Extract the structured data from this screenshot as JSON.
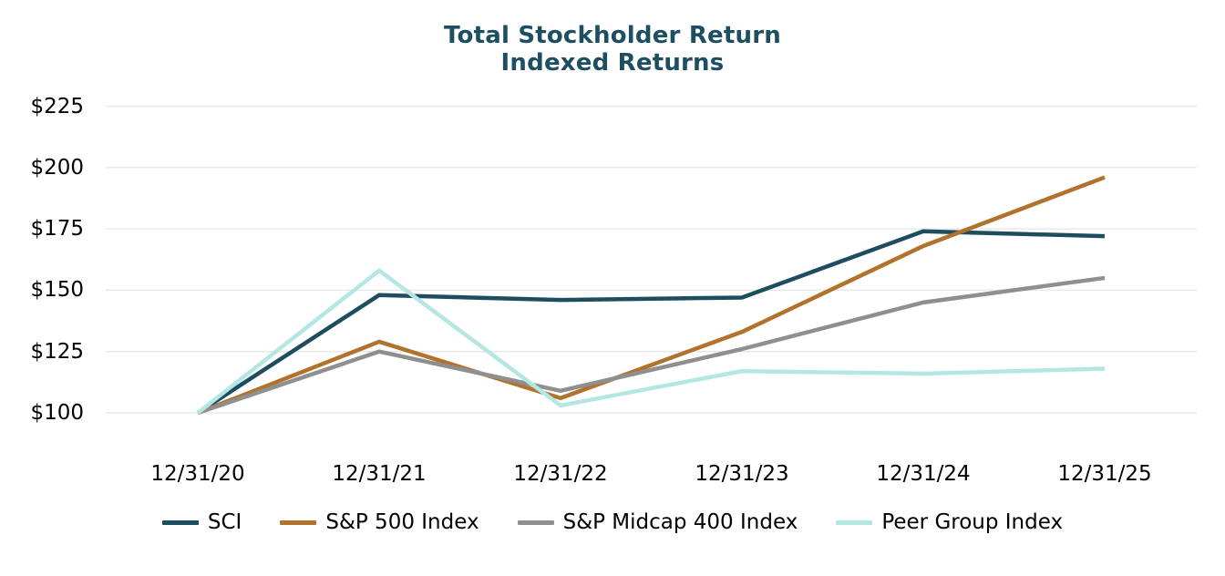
{
  "title": {
    "line1": "Total Stockholder Return",
    "line2": "Indexed Returns",
    "color": "#1e4e62"
  },
  "colors": {
    "gridline": "#e9e9e9",
    "axis_text": "#000000",
    "background": "#ffffff"
  },
  "chart_data": {
    "type": "line",
    "title": "Total Stockholder Return",
    "subtitle": "Indexed Returns",
    "categories": [
      "12/31/20",
      "12/31/21",
      "12/31/22",
      "12/31/23",
      "12/31/24",
      "12/31/25"
    ],
    "series": [
      {
        "name": "SCI",
        "color": "#1d4d5f",
        "values": [
          100,
          148,
          146,
          147,
          174,
          172
        ]
      },
      {
        "name": "S&P 500 Index",
        "color": "#b1722c",
        "values": [
          100,
          129,
          106,
          133,
          168,
          196
        ]
      },
      {
        "name": "S&P Midcap 400 Index",
        "color": "#8f8f8f",
        "values": [
          100,
          125,
          109,
          126,
          145,
          155
        ]
      },
      {
        "name": "Peer Group Index",
        "color": "#b4e7e3",
        "values": [
          100,
          158,
          103,
          117,
          116,
          118
        ]
      }
    ],
    "y_axis": {
      "prefix": "$",
      "tick_values": [
        100,
        125,
        150,
        175,
        200,
        225
      ],
      "tick_labels": [
        "$100",
        "$125",
        "$150",
        "$175",
        "$200",
        "$225"
      ]
    },
    "ylim": [
      100,
      225
    ],
    "grid": true,
    "legend_position": "bottom"
  }
}
